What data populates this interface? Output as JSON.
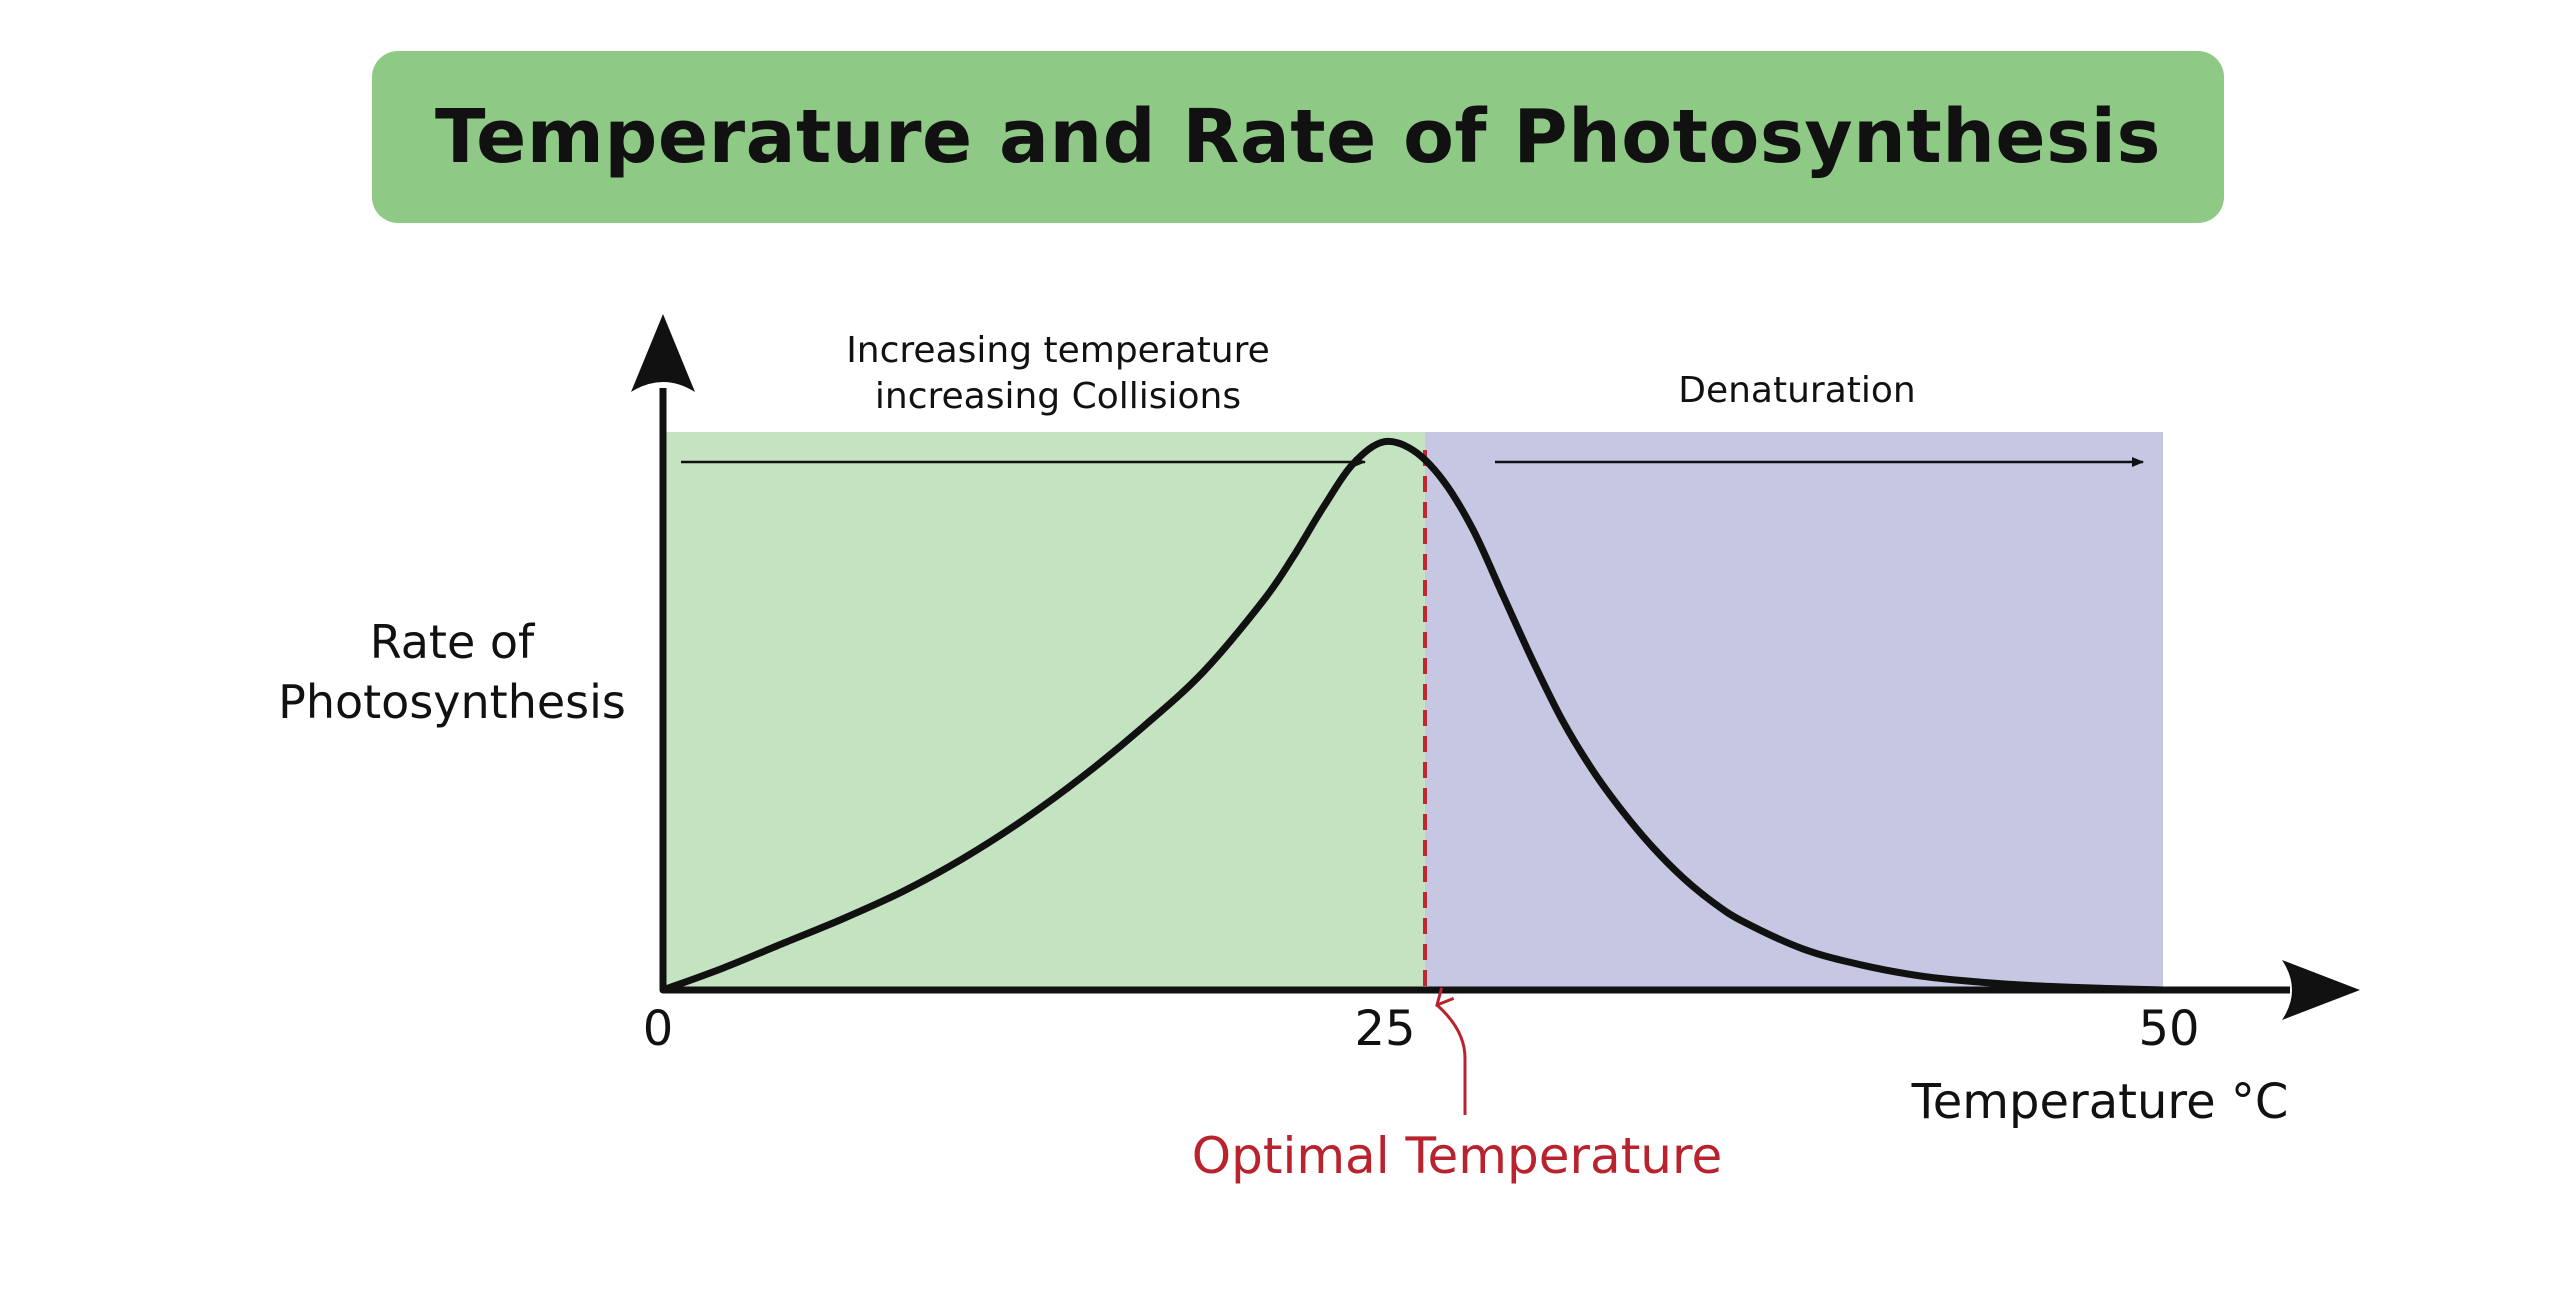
{
  "title": "Temperature and Rate of Photosynthesis",
  "colors": {
    "title_bg": "#8fc986",
    "region_rising": "#c4e3c0",
    "region_denaturation": "#c6c7e2",
    "curve": "#111111",
    "optimum_line": "#c0262d",
    "optimum_label": "#b8232d"
  },
  "chart_data": {
    "type": "line",
    "title": "Temperature and Rate of Photosynthesis",
    "xlabel": "Temperature °C",
    "ylabel_lines": [
      "Rate of",
      "Photosynthesis"
    ],
    "x_ticks": [
      "0",
      "25",
      "50"
    ],
    "xlim": [
      0,
      50
    ],
    "ylim": [
      0,
      1
    ],
    "y_scale": "relative, no tick labels",
    "grid": false,
    "legend": "none",
    "series": [
      {
        "x": [
          0,
          2,
          4,
          6,
          8,
          10,
          12,
          14,
          16,
          18,
          20,
          21,
          22,
          23,
          24,
          25,
          26,
          27,
          28,
          29,
          30,
          31,
          32,
          33,
          34,
          35,
          36,
          38,
          40,
          42,
          44,
          46,
          48,
          50
        ],
        "values": [
          0.0,
          0.04,
          0.085,
          0.13,
          0.18,
          0.24,
          0.31,
          0.39,
          0.48,
          0.58,
          0.71,
          0.79,
          0.88,
          0.96,
          1.0,
          0.985,
          0.93,
          0.84,
          0.72,
          0.6,
          0.49,
          0.4,
          0.325,
          0.26,
          0.205,
          0.16,
          0.125,
          0.075,
          0.045,
          0.025,
          0.014,
          0.007,
          0.003,
          0.0
        ]
      }
    ],
    "regions": [
      {
        "x_start": 0,
        "x_end": 25.4,
        "label_lines": [
          "Increasing temperature",
          "increasing Collisions"
        ]
      },
      {
        "x_start": 25.4,
        "x_end": 50,
        "label_lines": [
          "Denaturation"
        ]
      }
    ],
    "optimum": {
      "x": 25.4,
      "label": "Optimal Temperature"
    }
  }
}
